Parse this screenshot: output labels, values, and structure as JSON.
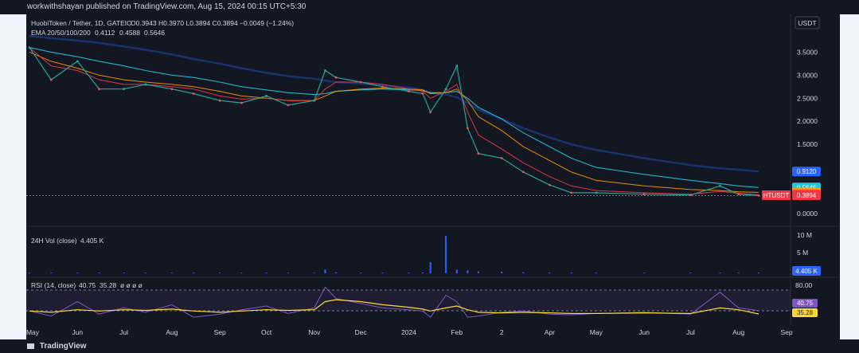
{
  "header": {
    "published_text": "workwithshayan published on TradingView.com, Aug 15, 2024 00:15 UTC+5:30"
  },
  "footer": {
    "brand": "TradingView"
  },
  "colors": {
    "background": "#131722",
    "up": "#26a69a",
    "down": "#ef5350",
    "ema20": "#f23645",
    "ema50": "#ff9800",
    "ema100": "#26c6da",
    "ema200": "#2962ff",
    "volume": "#2962ff",
    "rsi": "#7e57c2",
    "rsi_ma": "#fdd835",
    "price_label": "#f23645"
  },
  "main_legend": {
    "symbol": "HuobiToken / Tether, 1D, GATEIO",
    "ohlc": "O0.3943 H0.3970 L0.3894 C0.3894 −0.0049 (−1.24%)",
    "ema_title": "EMA 20/50/100/200",
    "ema_values": [
      "0.4112",
      "0.4588",
      "0.5646"
    ]
  },
  "volume_legend": {
    "title": "24H Vol (close)",
    "value": "4.405 K"
  },
  "rsi_legend": {
    "title": "RSI (14, close)",
    "value1": "40.75",
    "value2": "35.28",
    "extra": "ø ø ø ø"
  },
  "currency": "USDT",
  "price_axis": {
    "ticks": [
      "3.5000",
      "3.0000",
      "2.5000",
      "2.0000",
      "1.5000",
      "0.0000"
    ]
  },
  "price_tags": [
    {
      "text": "0.9120",
      "color": "#2962ff"
    },
    {
      "text": "0.5646",
      "color": "#26c6da"
    },
    {
      "text": "0.4588",
      "color": "#ff9800"
    },
    {
      "text": "0.4112",
      "color": "#f23645"
    }
  ],
  "last_price": {
    "symbol": "HTUSDT",
    "value": "0.3894"
  },
  "volume_axis": {
    "ticks": [
      "10 M",
      "5 M"
    ],
    "last": "4.405 K"
  },
  "rsi_axis": {
    "ticks": [
      "80.00"
    ],
    "tags": [
      "40.75",
      "35.28"
    ]
  },
  "time_axis": [
    "May",
    "Jun",
    "Jul",
    "Aug",
    "Sep",
    "Oct",
    "Nov",
    "Dec",
    "2024",
    "Feb",
    "2",
    "Apr",
    "May",
    "Jun",
    "Jul",
    "Aug",
    "Sep"
  ],
  "chart_data": {
    "type": "line",
    "title": "HuobiToken / Tether, 1D, GATEIO",
    "ylabel": "USDT",
    "ylim": [
      0,
      3.8
    ],
    "x": [
      "2023-05-01",
      "2023-05-15",
      "2023-06-01",
      "2023-06-15",
      "2023-07-01",
      "2023-07-15",
      "2023-08-01",
      "2023-08-15",
      "2023-09-01",
      "2023-09-15",
      "2023-10-01",
      "2023-10-15",
      "2023-11-01",
      "2023-11-08",
      "2023-11-15",
      "2023-12-01",
      "2023-12-15",
      "2024-01-01",
      "2024-01-10",
      "2024-01-15",
      "2024-01-25",
      "2024-02-01",
      "2024-02-08",
      "2024-02-15",
      "2024-03-01",
      "2024-03-15",
      "2024-04-01",
      "2024-04-15",
      "2024-05-01",
      "2024-06-01",
      "2024-07-01",
      "2024-07-20",
      "2024-08-01",
      "2024-08-14"
    ],
    "series": [
      {
        "values": [
          3.6,
          2.9,
          3.3,
          2.7,
          2.7,
          2.8,
          2.7,
          2.6,
          2.45,
          2.4,
          2.55,
          2.35,
          2.45,
          3.1,
          2.95,
          2.85,
          2.75,
          2.65,
          2.6,
          2.2,
          2.7,
          3.2,
          1.85,
          1.3,
          1.2,
          0.9,
          0.62,
          0.45,
          0.45,
          0.42,
          0.4,
          0.6,
          0.42,
          0.3894
        ]
      },
      {
        "values": [
          3.6,
          3.2,
          3.1,
          2.9,
          2.8,
          2.8,
          2.75,
          2.7,
          2.55,
          2.48,
          2.5,
          2.45,
          2.45,
          2.7,
          2.85,
          2.85,
          2.8,
          2.7,
          2.65,
          2.5,
          2.65,
          2.8,
          2.2,
          1.7,
          1.4,
          1.1,
          0.8,
          0.6,
          0.5,
          0.45,
          0.42,
          0.48,
          0.44,
          0.4112
        ]
      },
      {
        "values": [
          3.5,
          3.3,
          3.15,
          3.0,
          2.9,
          2.85,
          2.8,
          2.75,
          2.65,
          2.55,
          2.5,
          2.45,
          2.45,
          2.55,
          2.65,
          2.7,
          2.72,
          2.7,
          2.68,
          2.6,
          2.62,
          2.7,
          2.45,
          2.1,
          1.8,
          1.45,
          1.15,
          0.9,
          0.72,
          0.6,
          0.52,
          0.5,
          0.47,
          0.4588
        ]
      },
      {
        "values": [
          3.6,
          3.5,
          3.4,
          3.3,
          3.2,
          3.1,
          3.0,
          2.95,
          2.85,
          2.75,
          2.68,
          2.62,
          2.58,
          2.6,
          2.65,
          2.68,
          2.7,
          2.68,
          2.66,
          2.62,
          2.62,
          2.65,
          2.5,
          2.3,
          2.05,
          1.75,
          1.45,
          1.2,
          1.0,
          0.85,
          0.72,
          0.65,
          0.6,
          0.5646
        ]
      },
      {
        "values": [
          3.85,
          3.8,
          3.75,
          3.7,
          3.62,
          3.55,
          3.45,
          3.35,
          3.25,
          3.15,
          3.05,
          2.98,
          2.92,
          2.88,
          2.85,
          2.82,
          2.78,
          2.73,
          2.68,
          2.62,
          2.58,
          2.52,
          2.4,
          2.25,
          2.05,
          1.85,
          1.65,
          1.5,
          1.38,
          1.2,
          1.05,
          0.98,
          0.95,
          0.912
        ]
      }
    ],
    "volume": {
      "values": [
        0.1,
        0.1,
        0.1,
        0.1,
        0.1,
        0.1,
        0.1,
        0.1,
        0.1,
        0.1,
        0.1,
        0.1,
        0.1,
        1.0,
        0.3,
        0.2,
        0.2,
        0.2,
        0.2,
        3.0,
        10.0,
        1.0,
        0.8,
        0.5,
        0.4,
        0.3,
        0.2,
        0.2,
        0.1,
        0.1,
        0.1,
        0.2,
        0.1,
        0.004405
      ],
      "ylim": [
        0,
        10
      ]
    },
    "rsi": {
      "values": [
        40,
        32,
        55,
        35,
        45,
        38,
        50,
        30,
        35,
        42,
        48,
        36,
        45,
        78,
        60,
        52,
        45,
        42,
        40,
        30,
        65,
        55,
        30,
        32,
        38,
        40,
        35,
        34,
        36,
        38,
        35,
        70,
        45,
        40.75
      ],
      "ma": [
        40,
        38,
        42,
        40,
        42,
        41,
        43,
        40,
        38,
        40,
        42,
        41,
        42,
        55,
        58,
        55,
        50,
        46,
        43,
        40,
        45,
        48,
        42,
        38,
        37,
        38,
        37,
        36,
        36,
        37,
        36,
        45,
        42,
        35.28
      ],
      "ylim": [
        20,
        90
      ]
    }
  }
}
